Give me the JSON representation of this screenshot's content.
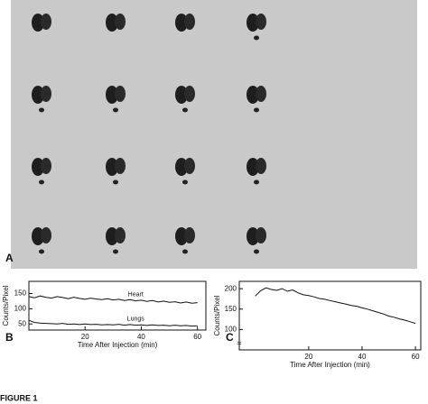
{
  "figure": {
    "panel_a_label": "A",
    "caption": "FIGURE 1"
  },
  "chart_data": [
    {
      "type": "line",
      "panel_label": "B",
      "ylabel": "Counts/Pixel",
      "xlabel": "Time After Injection (min)",
      "x": [
        0,
        2,
        4,
        6,
        8,
        10,
        12,
        14,
        16,
        18,
        20,
        22,
        24,
        26,
        28,
        30,
        32,
        34,
        36,
        38,
        40,
        42,
        44,
        46,
        48,
        50,
        52,
        54,
        56,
        58,
        60
      ],
      "series": [
        {
          "name": "Heart",
          "color": "#111111",
          "values": [
            140,
            136,
            142,
            138,
            135,
            140,
            137,
            133,
            138,
            134,
            131,
            135,
            132,
            130,
            133,
            129,
            131,
            127,
            130,
            126,
            128,
            124,
            127,
            122,
            125,
            121,
            123,
            119,
            122,
            118,
            120
          ]
        },
        {
          "name": "Lungs",
          "color": "#111111",
          "values": [
            62,
            55,
            53,
            52,
            51,
            50,
            52,
            49,
            50,
            48,
            50,
            48,
            49,
            47,
            48,
            47,
            49,
            46,
            48,
            46,
            47,
            45,
            47,
            45,
            46,
            44,
            46,
            44,
            45,
            43,
            44
          ]
        }
      ],
      "xlim": [
        0,
        63
      ],
      "ylim": [
        30,
        190
      ],
      "xticks": [
        20,
        40,
        60
      ],
      "yticks": [
        50,
        100,
        150
      ]
    },
    {
      "type": "line",
      "panel_label": "C",
      "ylabel": "Counts/Pixel",
      "xlabel": "Time After Injection (min)",
      "x": [
        0,
        2,
        4,
        6,
        8,
        10,
        12,
        14,
        16,
        18,
        20,
        22,
        24,
        26,
        28,
        30,
        32,
        34,
        36,
        38,
        40,
        42,
        44,
        46,
        48,
        50,
        52,
        54,
        56,
        58,
        60
      ],
      "color": "#111111",
      "values": [
        182,
        195,
        202,
        198,
        196,
        200,
        194,
        197,
        190,
        185,
        183,
        180,
        176,
        174,
        171,
        168,
        165,
        162,
        159,
        157,
        153,
        150,
        146,
        142,
        138,
        133,
        130,
        126,
        123,
        119,
        115
      ],
      "xlim": [
        -6,
        62
      ],
      "ylim": [
        50,
        218
      ],
      "xticks": [
        20,
        40,
        60
      ],
      "yticks": [
        100,
        150,
        200
      ]
    }
  ]
}
